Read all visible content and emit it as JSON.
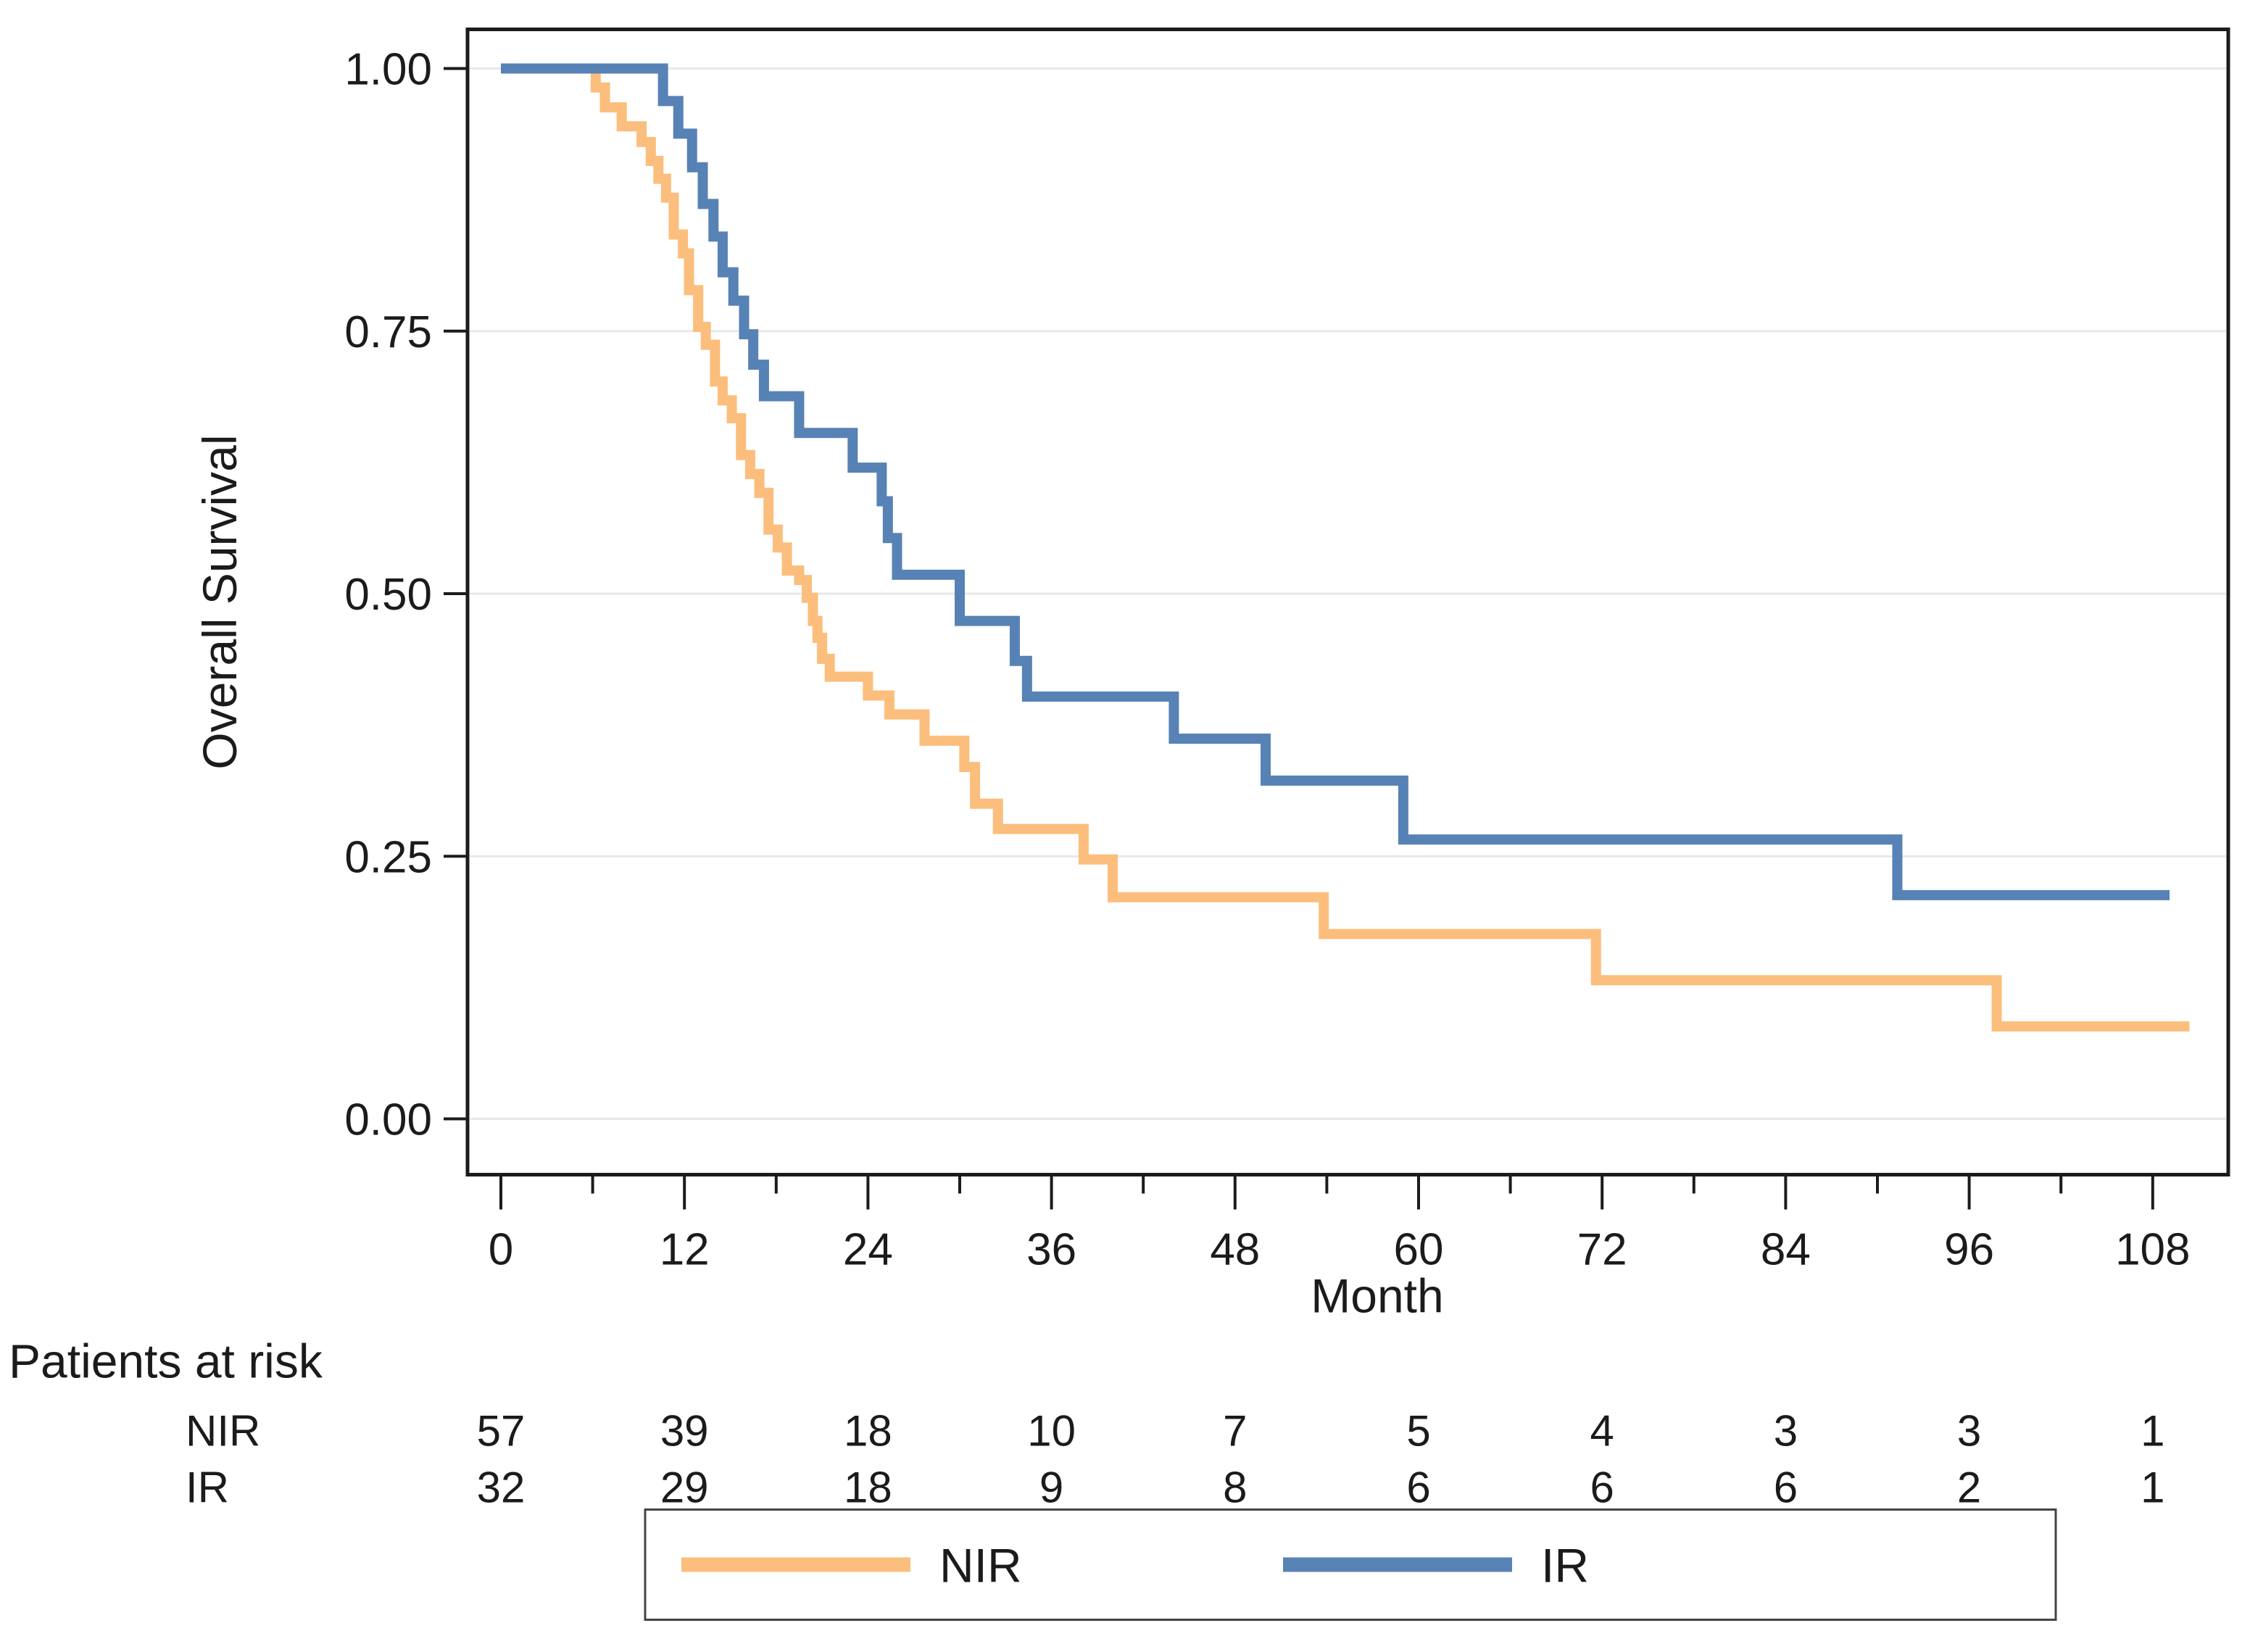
{
  "figure": {
    "kind": "kaplan-meier-survival-plot",
    "background": "#ffffff"
  },
  "chart_data": {
    "type": "line",
    "subtype": "step-survival",
    "title": "",
    "xlabel": "Month",
    "ylabel": "Overall Survival",
    "xlim": [
      -2.2,
      112.9
    ],
    "ylim": [
      -0.053,
      1.037
    ],
    "grid": "horizontal-only",
    "legend_position": "bottom",
    "x_ticks": [
      0,
      12,
      24,
      36,
      48,
      60,
      72,
      84,
      96,
      108
    ],
    "x_tick_labels": [
      "0",
      "12",
      "24",
      "36",
      "48",
      "60",
      "72",
      "84",
      "96",
      "108"
    ],
    "x_minor_ticks": [
      6,
      18,
      30,
      42,
      54,
      66,
      78,
      90,
      102
    ],
    "y_ticks": [
      0,
      0.25,
      0.5,
      0.75,
      1
    ],
    "y_tick_labels": [
      "0.00",
      "0.25",
      "0.50",
      "0.75",
      "1.00"
    ],
    "series": [
      {
        "name": "NIR",
        "color": "#fcbe7c",
        "start_month": 0,
        "start_survival": 1.0,
        "end_month": 110.4,
        "steps": [
          [
            6.2,
            0.982
          ],
          [
            6.8,
            0.963
          ],
          [
            7.9,
            0.945
          ],
          [
            9.2,
            0.93
          ],
          [
            9.8,
            0.912
          ],
          [
            10.3,
            0.895
          ],
          [
            10.8,
            0.877
          ],
          [
            11.3,
            0.842
          ],
          [
            11.9,
            0.824
          ],
          [
            12.3,
            0.789
          ],
          [
            12.9,
            0.754
          ],
          [
            13.4,
            0.737
          ],
          [
            14.0,
            0.702
          ],
          [
            14.5,
            0.684
          ],
          [
            15.1,
            0.667
          ],
          [
            15.7,
            0.632
          ],
          [
            16.3,
            0.614
          ],
          [
            16.9,
            0.596
          ],
          [
            17.5,
            0.561
          ],
          [
            18.1,
            0.544
          ],
          [
            18.7,
            0.522
          ],
          [
            19.5,
            0.513
          ],
          [
            20.0,
            0.496
          ],
          [
            20.4,
            0.474
          ],
          [
            20.7,
            0.458
          ],
          [
            21.0,
            0.438
          ],
          [
            21.5,
            0.421
          ],
          [
            24.0,
            0.403
          ],
          [
            25.4,
            0.385
          ],
          [
            27.7,
            0.36
          ],
          [
            30.3,
            0.335
          ],
          [
            31.0,
            0.3
          ],
          [
            32.5,
            0.276
          ],
          [
            38.1,
            0.247
          ],
          [
            40.0,
            0.211
          ],
          [
            53.8,
            0.176
          ],
          [
            71.6,
            0.132
          ],
          [
            97.8,
            0.088
          ]
        ]
      },
      {
        "name": "IR",
        "color": "#5782b5",
        "start_month": 0,
        "start_survival": 1.0,
        "end_month": 109.1,
        "steps": [
          [
            10.6,
            0.969
          ],
          [
            11.6,
            0.938
          ],
          [
            12.5,
            0.906
          ],
          [
            13.2,
            0.871
          ],
          [
            13.9,
            0.84
          ],
          [
            14.5,
            0.806
          ],
          [
            15.2,
            0.779
          ],
          [
            15.9,
            0.747
          ],
          [
            16.5,
            0.718
          ],
          [
            17.2,
            0.688
          ],
          [
            19.5,
            0.653
          ],
          [
            23.0,
            0.62
          ],
          [
            24.9,
            0.588
          ],
          [
            25.3,
            0.553
          ],
          [
            25.9,
            0.518
          ],
          [
            30.0,
            0.474
          ],
          [
            33.6,
            0.436
          ],
          [
            34.4,
            0.402
          ],
          [
            44.0,
            0.362
          ],
          [
            50.0,
            0.322
          ],
          [
            59.0,
            0.266
          ],
          [
            91.3,
            0.213
          ]
        ]
      }
    ]
  },
  "at_risk": {
    "heading": "Patients at risk",
    "rows": [
      {
        "label": "NIR",
        "counts": [
          "57",
          "39",
          "18",
          "10",
          "7",
          "5",
          "4",
          "3",
          "3",
          "1"
        ]
      },
      {
        "label": "IR",
        "counts": [
          "32",
          "29",
          "18",
          "9",
          "8",
          "6",
          "6",
          "6",
          "2",
          "1"
        ]
      }
    ]
  },
  "legend": {
    "items": [
      {
        "label": "NIR",
        "color": "#fcbe7c"
      },
      {
        "label": "IR",
        "color": "#5782b5"
      }
    ]
  },
  "colors": {
    "nir_line": "#fcbe7c",
    "ir_line": "#5782b5",
    "gridline": "#e8e8e8",
    "axis": "#1b1b1b",
    "legend_border": "#444444"
  }
}
